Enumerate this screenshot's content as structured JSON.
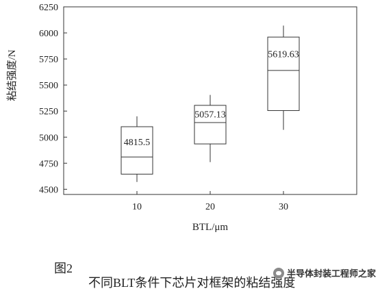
{
  "chart_data": {
    "type": "box",
    "xlabel": "BTL/μm",
    "ylabel": "粘结强度/N",
    "ylim": [
      4450,
      6250
    ],
    "yticks": [
      4500,
      4750,
      5000,
      5250,
      5500,
      5750,
      6000,
      6250
    ],
    "categories": [
      "10",
      "20",
      "30"
    ],
    "boxes": [
      {
        "category": "10",
        "min": 4570,
        "q1": 4645,
        "median": 4810,
        "q3": 5100,
        "max": 5200,
        "label": "4815.5"
      },
      {
        "category": "20",
        "min": 4760,
        "q1": 4935,
        "median": 5140,
        "q3": 5305,
        "max": 5405,
        "label": "5057.13"
      },
      {
        "category": "30",
        "min": 5070,
        "q1": 5255,
        "median": 5640,
        "q3": 5960,
        "max": 6070,
        "label": "5619.63"
      }
    ],
    "grid": false
  },
  "caption": {
    "figure_no": "图2",
    "title": "不同BLT条件下芯片对框架的粘结强度"
  },
  "watermark": "半导体封装工程师之家",
  "colors": {
    "axis": "#333333",
    "box": "#333333"
  }
}
